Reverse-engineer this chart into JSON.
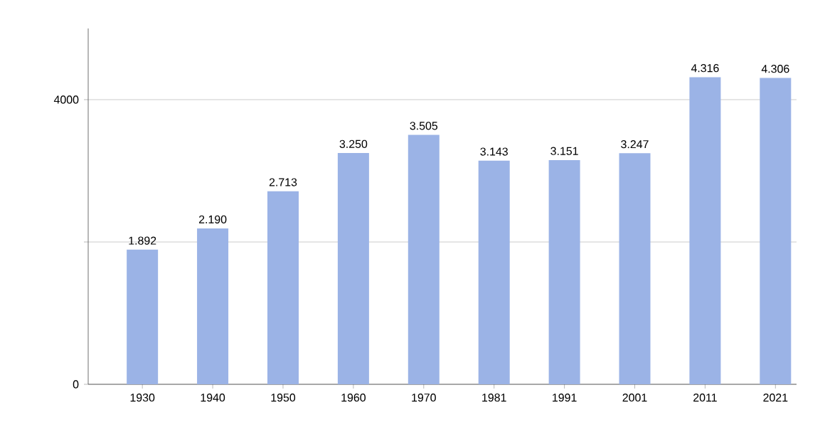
{
  "chart_data": {
    "type": "bar",
    "categories": [
      "1930",
      "1940",
      "1950",
      "1960",
      "1970",
      "1981",
      "1991",
      "2001",
      "2011",
      "2021"
    ],
    "values": [
      1892,
      2190,
      2713,
      3250,
      3505,
      3143,
      3151,
      3247,
      4316,
      4306
    ],
    "value_labels": [
      "1.892",
      "2.190",
      "2.713",
      "3.250",
      "3.505",
      "3.143",
      "3.151",
      "3.247",
      "4.316",
      "4.306"
    ],
    "color": "#9bb3e6",
    "ylim": [
      0,
      5000
    ],
    "yticks": [
      0,
      {
        "value": 2000,
        "label": null
      },
      4000
    ],
    "grid": "y"
  }
}
